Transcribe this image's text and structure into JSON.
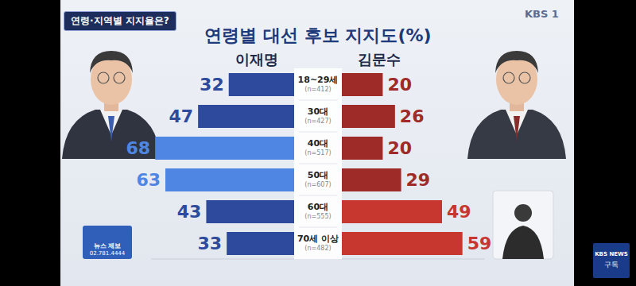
{
  "chart_data": {
    "type": "bar",
    "title": "연령별 대선 후보 지지도(%)",
    "header_tag": "연령·지역별 지지율은?",
    "orientation": "horizontal",
    "data_labels": true,
    "tick_labels": false,
    "grid": false,
    "categories": [
      "18~29세",
      "30대",
      "40대",
      "50대",
      "60대",
      "70세 이상"
    ],
    "sample_labels": [
      "(n=412)",
      "(n=427)",
      "(n=517)",
      "(n=607)",
      "(n=555)",
      "(n=482)"
    ],
    "xlim": [
      0,
      70
    ],
    "series": [
      {
        "name": "이재명",
        "colors": [
          "#2e4a9c",
          "#2e4a9c",
          "#4f86e3",
          "#4f86e3",
          "#2e4a9c",
          "#2e4a9c"
        ],
        "values": [
          32,
          47,
          68,
          63,
          43,
          33
        ]
      },
      {
        "name": "김문수",
        "colors": [
          "#9e2b27",
          "#9e2b27",
          "#9e2b27",
          "#9e2b27",
          "#c8372f",
          "#c8372f"
        ],
        "values": [
          20,
          26,
          20,
          29,
          49,
          59
        ]
      }
    ],
    "broadcast": {
      "channel": "KBS 1",
      "news_tip": [
        "뉴스 제보",
        "02.781.4444"
      ],
      "badge": [
        "KBS NEWS",
        "구독"
      ]
    }
  }
}
